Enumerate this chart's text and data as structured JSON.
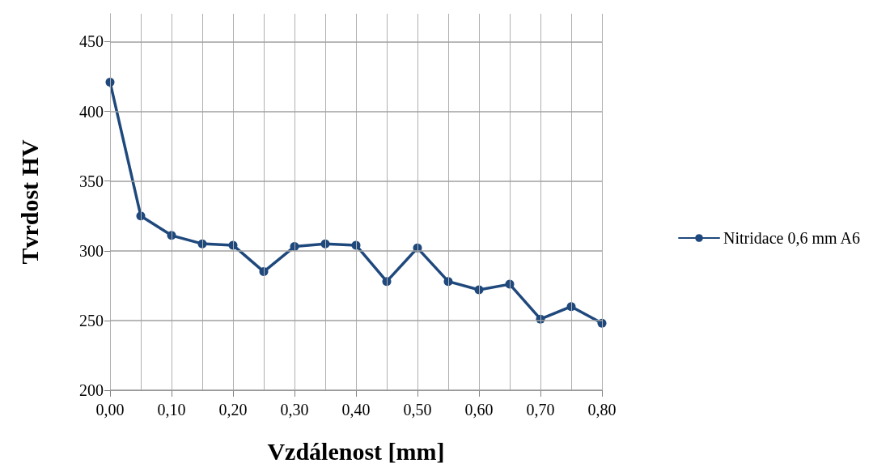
{
  "chart_data": {
    "type": "line",
    "xlabel": "Vzdálenost [mm]",
    "ylabel": "Tvrdost HV",
    "x": [
      0,
      0.05,
      0.1,
      0.15,
      0.2,
      0.25,
      0.3,
      0.35,
      0.4,
      0.45,
      0.5,
      0.55,
      0.6,
      0.65,
      0.7,
      0.75,
      0.8
    ],
    "series": [
      {
        "name": "Nitridace 0,6 mm A6",
        "color": "#1f497d",
        "values": [
          421,
          325,
          311,
          305,
          304,
          285,
          303,
          305,
          304,
          278,
          302,
          278,
          272,
          276,
          251,
          260,
          248
        ]
      }
    ],
    "xlim": [
      0,
      0.8
    ],
    "xticks": [
      {
        "value": 0,
        "label": "0,00"
      },
      {
        "value": 0.05,
        "label": null
      },
      {
        "value": 0.1,
        "label": "0,10"
      },
      {
        "value": 0.15,
        "label": null
      },
      {
        "value": 0.2,
        "label": "0,20"
      },
      {
        "value": 0.25,
        "label": null
      },
      {
        "value": 0.3,
        "label": "0,30"
      },
      {
        "value": 0.35,
        "label": null
      },
      {
        "value": 0.4,
        "label": "0,40"
      },
      {
        "value": 0.45,
        "label": null
      },
      {
        "value": 0.5,
        "label": "0,50"
      },
      {
        "value": 0.55,
        "label": null
      },
      {
        "value": 0.6,
        "label": "0,60"
      },
      {
        "value": 0.65,
        "label": null
      },
      {
        "value": 0.7,
        "label": "0,70"
      },
      {
        "value": 0.75,
        "label": null
      },
      {
        "value": 0.8,
        "label": "0,80"
      }
    ],
    "ylim": [
      200,
      470
    ],
    "yticks": [
      200,
      250,
      300,
      350,
      400,
      450
    ],
    "grid": true,
    "legend": "right",
    "marker": "circle",
    "line_style": "solid"
  }
}
